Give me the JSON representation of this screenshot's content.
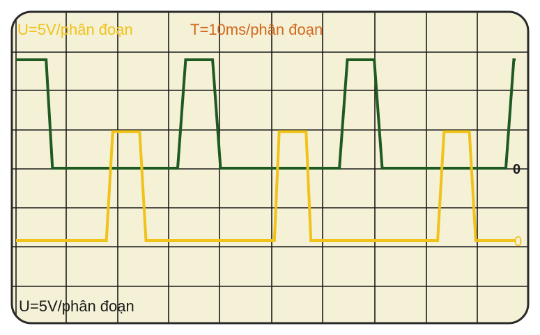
{
  "chart_data": {
    "type": "line",
    "labels": {
      "scale_yellow": "U=5V/phân đoạn",
      "scale_time": "T=10ms/phân đoạn",
      "scale_green": "U=5V/phân đoạn"
    },
    "zero_markers": {
      "green": "0",
      "yellow": "0"
    },
    "series": [
      {
        "color": "#1f5a22",
        "points": [
          [
            0,
            2.8
          ],
          [
            0.95,
            2.8
          ],
          [
            1.15,
            0
          ],
          [
            5.1,
            0
          ],
          [
            5.35,
            2.8
          ],
          [
            6.2,
            2.8
          ],
          [
            6.45,
            0
          ],
          [
            10.2,
            0
          ],
          [
            10.45,
            2.8
          ],
          [
            11.3,
            2.8
          ],
          [
            11.55,
            0
          ],
          [
            15.45,
            0
          ],
          [
            15.7,
            2.8
          ],
          [
            16.0,
            2.8
          ]
        ]
      },
      {
        "color": "#f0c21a",
        "points": [
          [
            0,
            0
          ],
          [
            2.85,
            0
          ],
          [
            3.05,
            1.8
          ],
          [
            3.9,
            1.8
          ],
          [
            4.1,
            0
          ],
          [
            8.15,
            0
          ],
          [
            8.3,
            1.8
          ],
          [
            9.15,
            1.8
          ],
          [
            9.3,
            0
          ],
          [
            13.3,
            0
          ],
          [
            13.5,
            1.8
          ],
          [
            14.3,
            1.8
          ],
          [
            14.5,
            0
          ],
          [
            16.0,
            0
          ]
        ]
      }
    ],
    "grid": true,
    "colors": {
      "background": "#f5f1d6",
      "grid": "#1a1a1a",
      "frame": "#2a2a2a",
      "label_yellow": "#f0c21a",
      "label_time": "#d2691e",
      "label_green": "#1a1a1a",
      "zero_green": "#1a1a1a",
      "zero_yellow": "#f0c21a"
    }
  }
}
